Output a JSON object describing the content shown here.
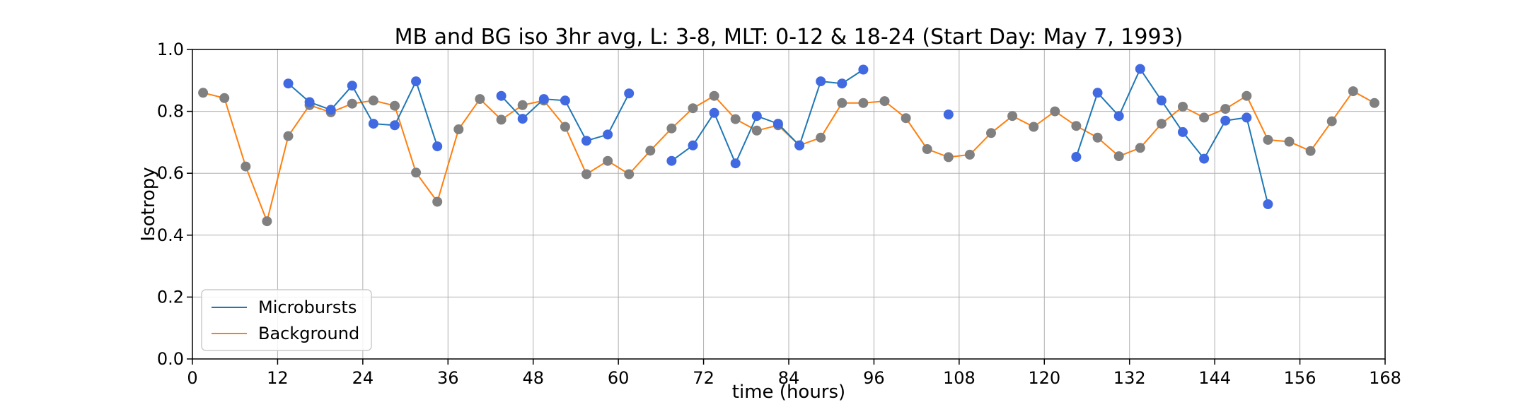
{
  "chart_data": {
    "type": "line",
    "title": "MB and BG iso 3hr avg, L: 3-8, MLT: 0-12 & 18-24 (Start Day: May 7, 1993)",
    "xlabel": "time (hours)",
    "ylabel": "Isotropy",
    "xlim": [
      0,
      168
    ],
    "ylim": [
      0,
      1.0
    ],
    "xticks": [
      0,
      12,
      24,
      36,
      48,
      60,
      72,
      84,
      96,
      108,
      120,
      132,
      144,
      156,
      168
    ],
    "yticks": [
      0.0,
      0.2,
      0.4,
      0.6,
      0.8,
      1.0
    ],
    "xtick_labels": [
      "0",
      "12",
      "24",
      "36",
      "48",
      "60",
      "72",
      "84",
      "96",
      "108",
      "120",
      "132",
      "144",
      "156",
      "168"
    ],
    "ytick_labels": [
      "0.0",
      "0.2",
      "0.4",
      "0.6",
      "0.8",
      "1.0"
    ],
    "grid": true,
    "legend_position": "lower-left",
    "series": [
      {
        "name": "Microbursts",
        "color": "#1f77b4",
        "marker_color": "#4169e1",
        "x": [
          1.5,
          4.5,
          7.5,
          10.5,
          13.5,
          16.5,
          19.5,
          22.5,
          25.5,
          28.5,
          31.5,
          34.5,
          37.5,
          40.5,
          43.5,
          46.5,
          49.5,
          52.5,
          55.5,
          58.5,
          61.5,
          64.5,
          67.5,
          70.5,
          73.5,
          76.5,
          79.5,
          82.5,
          85.5,
          88.5,
          91.5,
          94.5,
          97.5,
          100.5,
          103.5,
          106.5,
          109.5,
          112.5,
          115.5,
          118.5,
          121.5,
          124.5,
          127.5,
          130.5,
          133.5,
          136.5,
          139.5,
          142.5,
          145.5,
          148.5,
          151.5,
          154.5,
          157.5,
          160.5,
          163.5,
          166.5
        ],
        "y": [
          null,
          null,
          null,
          null,
          0.89,
          0.83,
          0.805,
          0.883,
          0.76,
          0.755,
          0.897,
          0.687,
          null,
          null,
          0.85,
          0.776,
          0.84,
          0.835,
          0.705,
          0.725,
          0.858,
          null,
          0.64,
          0.69,
          0.795,
          0.632,
          0.785,
          0.76,
          0.69,
          0.897,
          0.89,
          0.935,
          null,
          null,
          null,
          0.79,
          null,
          null,
          null,
          null,
          null,
          0.653,
          0.86,
          0.785,
          0.937,
          0.835,
          0.733,
          0.647,
          0.77,
          0.78,
          0.5,
          null,
          null,
          null,
          null,
          null
        ]
      },
      {
        "name": "Background",
        "color": "#ff7f0e",
        "marker_color": "#808080",
        "x": [
          1.5,
          4.5,
          7.5,
          10.5,
          13.5,
          16.5,
          19.5,
          22.5,
          25.5,
          28.5,
          31.5,
          34.5,
          37.5,
          40.5,
          43.5,
          46.5,
          49.5,
          52.5,
          55.5,
          58.5,
          61.5,
          64.5,
          67.5,
          70.5,
          73.5,
          76.5,
          79.5,
          82.5,
          85.5,
          88.5,
          91.5,
          94.5,
          97.5,
          100.5,
          103.5,
          106.5,
          109.5,
          112.5,
          115.5,
          118.5,
          121.5,
          124.5,
          127.5,
          130.5,
          133.5,
          136.5,
          139.5,
          142.5,
          145.5,
          148.5,
          151.5,
          154.5,
          157.5,
          160.5,
          163.5,
          166.5
        ],
        "y": [
          0.86,
          0.843,
          0.622,
          0.445,
          0.72,
          0.82,
          0.797,
          0.825,
          0.835,
          0.818,
          0.602,
          0.508,
          0.742,
          0.84,
          0.773,
          0.82,
          0.835,
          0.75,
          0.597,
          0.64,
          0.597,
          0.673,
          0.745,
          0.81,
          0.85,
          0.775,
          0.738,
          0.755,
          0.69,
          0.715,
          0.827,
          0.827,
          0.833,
          0.778,
          0.678,
          0.652,
          0.66,
          0.73,
          0.785,
          0.75,
          0.8,
          0.753,
          0.715,
          0.655,
          0.682,
          0.76,
          0.815,
          0.78,
          0.808,
          0.85,
          0.708,
          0.702,
          0.672,
          0.768,
          0.865,
          0.827
        ]
      }
    ]
  }
}
